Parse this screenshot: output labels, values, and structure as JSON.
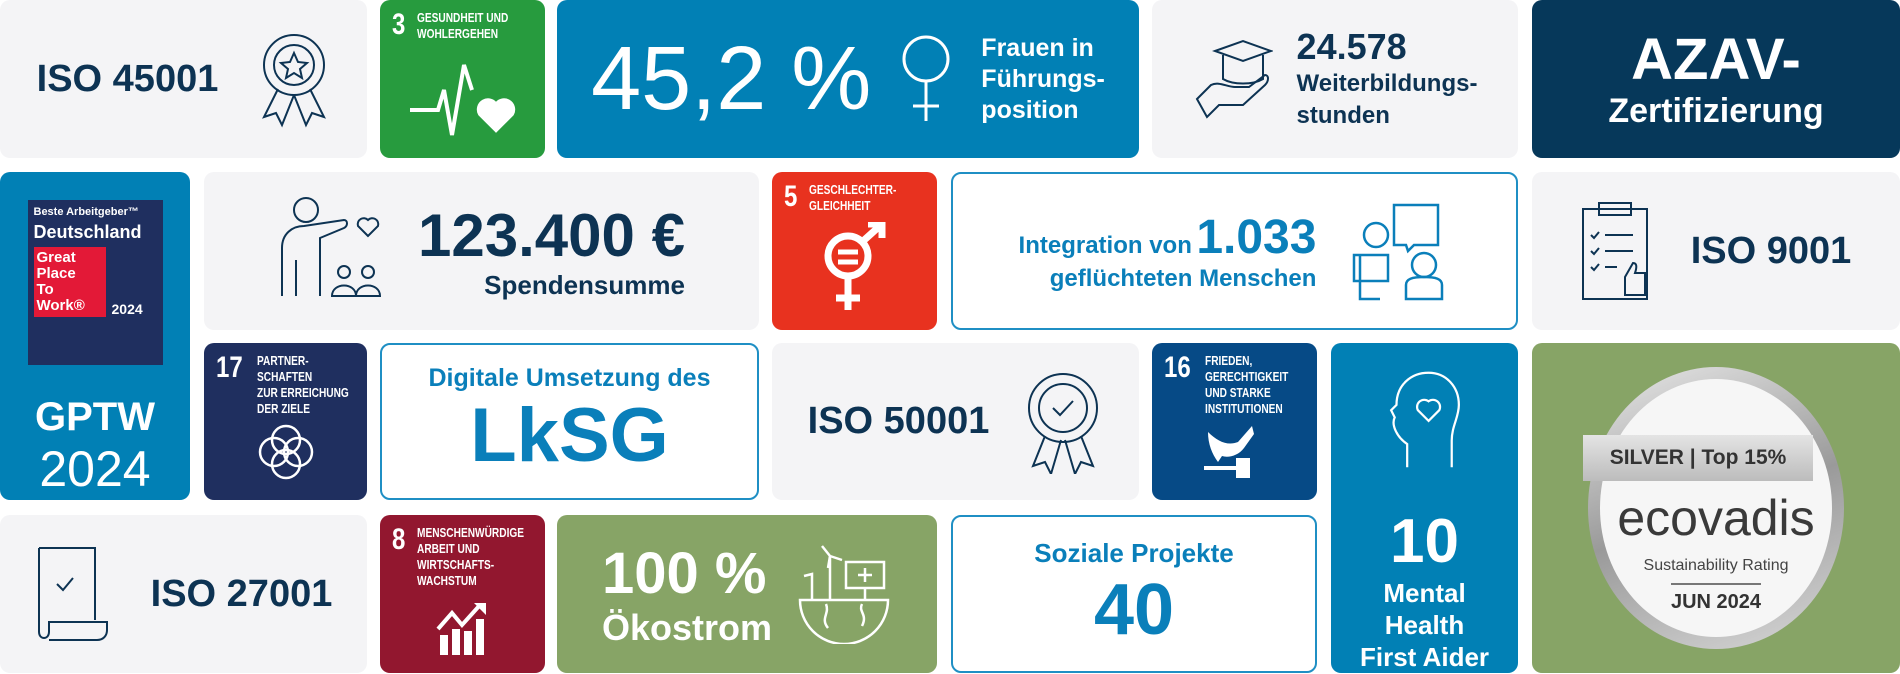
{
  "tiles": {
    "iso45001": {
      "label": "ISO 45001",
      "icon": "award-star-icon"
    },
    "sdg3": {
      "number": "3",
      "label_line1": "Gesundheit und",
      "label_line2": "Wohlergehen",
      "color": "#279b3e",
      "icon": "heartbeat-icon"
    },
    "women": {
      "value": "45,2 %",
      "line1": "Frauen in",
      "line2": "Führungs-",
      "line3": "position",
      "color": "#0180b5",
      "icon": "female-symbol-icon"
    },
    "training": {
      "value": "24.578",
      "line1": "Weiterbildungs-",
      "line2": "stunden",
      "icon": "graduation-hand-icon"
    },
    "azav": {
      "line1": "AZAV-",
      "line2": "Zertifizierung",
      "color": "#06385a"
    },
    "gptw": {
      "badge_top": "Beste Arbeitgeber™",
      "badge_country": "Deutschland",
      "badge_l1": "Great",
      "badge_l2": "Place",
      "badge_l3": "To",
      "badge_l4": "Work®",
      "badge_year": "2024",
      "line1": "GPTW",
      "line2": "2024",
      "color": "#0180b5"
    },
    "donations": {
      "value": "123.400 €",
      "label": "Spendensumme",
      "icon": "donation-people-icon"
    },
    "sdg5": {
      "number": "5",
      "label_line1": "Geschlechter-",
      "label_line2": "gleichheit",
      "color": "#e8321f",
      "icon": "gender-equality-icon"
    },
    "integration": {
      "prefix": "Integration von",
      "value": "1.033",
      "line2": "geflüchteten Menschen",
      "icon": "conversation-people-icon"
    },
    "iso9001": {
      "label": "ISO 9001",
      "icon": "clipboard-thumbs-up-icon"
    },
    "sdg17": {
      "number": "17",
      "label_line1": "Partner-",
      "label_line2": "schaften",
      "label_line3": "zur Erreichung",
      "label_line4": "der Ziele",
      "color": "#1f2f5f",
      "icon": "flower-rings-icon"
    },
    "lksg": {
      "line1": "Digitale Umsetzung des",
      "line2": "LkSG"
    },
    "iso50001": {
      "label": "ISO 50001",
      "icon": "award-check-icon"
    },
    "sdg16": {
      "number": "16",
      "label_line1": "Frieden,",
      "label_line2": "Gerechtigkeit",
      "label_line3": "und starke",
      "label_line4": "Institutionen",
      "color": "#064a86",
      "icon": "dove-gavel-icon"
    },
    "mental": {
      "value": "10",
      "line1": "Mental",
      "line2": "Health",
      "line3": "First Aider",
      "color": "#0180b5",
      "icon": "head-heart-icon"
    },
    "ecovadis": {
      "ribbon": "SILVER | Top 15%",
      "brand": "ecovadis",
      "subtitle": "Sustainability Rating",
      "date": "JUN 2024",
      "color": "#87a466"
    },
    "iso27001": {
      "label": "ISO 27001",
      "icon": "document-check-icon"
    },
    "sdg8": {
      "number": "8",
      "label_line1": "Menschenwürdige",
      "label_line2": "Arbeit und",
      "label_line3": "Wirtschafts-",
      "label_line4": "wachstum",
      "color": "#92172f",
      "icon": "growth-chart-icon"
    },
    "green_power": {
      "value": "100 %",
      "label": "Ökostrom",
      "color": "#87a466",
      "icon": "renewable-earth-icon"
    },
    "social": {
      "label": "Soziale Projekte",
      "value": "40"
    }
  }
}
